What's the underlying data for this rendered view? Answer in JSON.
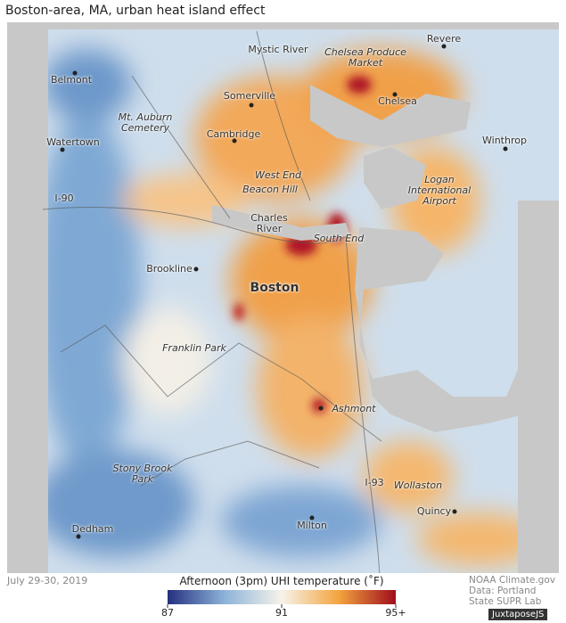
{
  "header": {
    "title": "Boston-area, MA, urban heat island effect"
  },
  "places": [
    {
      "name": "Belmont"
    },
    {
      "name": "Watertown"
    },
    {
      "name": "Mt. Auburn Cemetery"
    },
    {
      "name": "Somerville"
    },
    {
      "name": "Cambridge"
    },
    {
      "name": "Mystic River"
    },
    {
      "name": "Chelsea Produce Market"
    },
    {
      "name": "Revere"
    },
    {
      "name": "Chelsea"
    },
    {
      "name": "Winthrop"
    },
    {
      "name": "West End"
    },
    {
      "name": "Beacon Hill"
    },
    {
      "name": "Logan International Airport"
    },
    {
      "name": "I-90"
    },
    {
      "name": "Charles River"
    },
    {
      "name": "South End"
    },
    {
      "name": "Brookline"
    },
    {
      "name": "Boston"
    },
    {
      "name": "Franklin Park"
    },
    {
      "name": "Ashmont"
    },
    {
      "name": "Stony Brook Park"
    },
    {
      "name": "I-93"
    },
    {
      "name": "Wollaston"
    },
    {
      "name": "Quincy"
    },
    {
      "name": "Dedham"
    },
    {
      "name": "Milton"
    }
  ],
  "footer": {
    "date": "July 29-30, 2019",
    "credit": "NOAA Climate.gov Data: Portland State SUPR Lab",
    "badge": "JuxtaposeJS"
  },
  "legend": {
    "title": "Afternoon (3pm) UHI temperature (˚F)",
    "range": [
      87,
      95
    ],
    "ticks": [
      87,
      91,
      {
        "value": 95,
        "label": "95+"
      }
    ],
    "colors": [
      "#24307e",
      "#8db3d9",
      "#f6f3ea",
      "#f3a43f",
      "#a00d1d"
    ]
  }
}
